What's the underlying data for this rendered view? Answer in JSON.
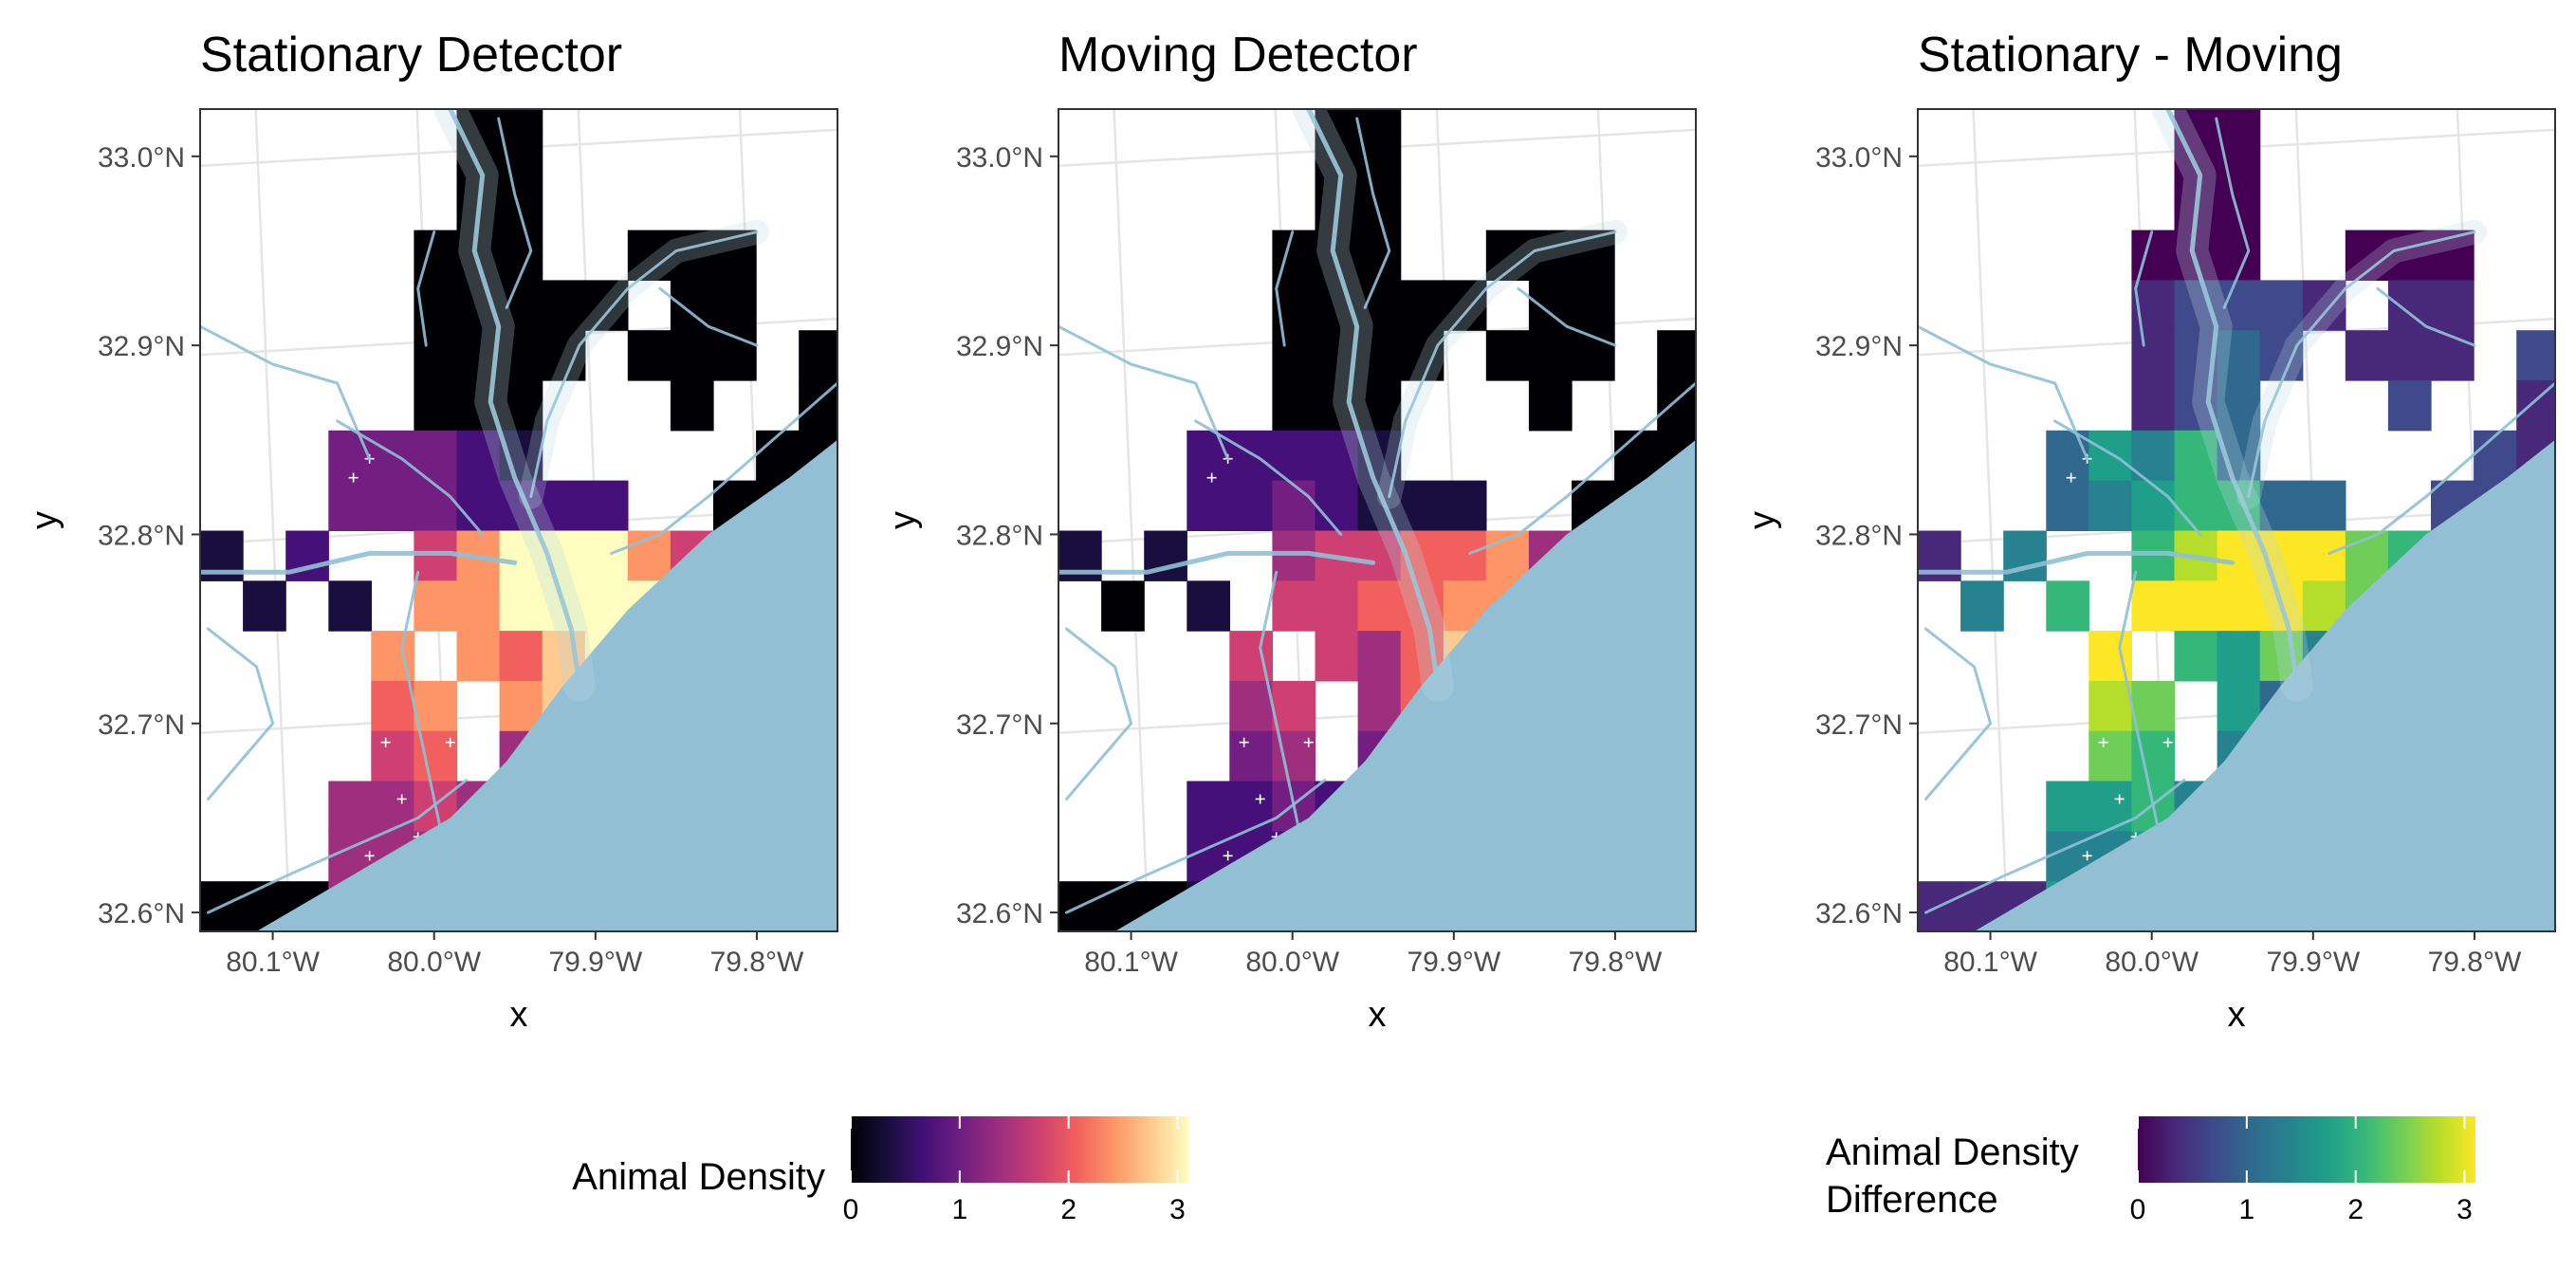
{
  "panels": [
    {
      "title": "Stationary Detector",
      "palette": "magma"
    },
    {
      "title": "Moving Detector",
      "palette": "magma"
    },
    {
      "title": "Stationary - Moving",
      "palette": "viridis"
    }
  ],
  "axes": {
    "xlabel": "x",
    "ylabel": "y",
    "lon_range": [
      -80.145,
      -79.75
    ],
    "lat_range": [
      32.59,
      33.025
    ],
    "xticks": [
      {
        "lon": -80.1,
        "label": "80.1°W"
      },
      {
        "lon": -80.0,
        "label": "80.0°W"
      },
      {
        "lon": -79.9,
        "label": "79.9°W"
      },
      {
        "lon": -79.8,
        "label": "79.8°W"
      }
    ],
    "yticks": [
      {
        "lat": 33.0,
        "label": "33.0°N"
      },
      {
        "lat": 32.9,
        "label": "32.9°N"
      },
      {
        "lat": 32.8,
        "label": "32.8°N"
      },
      {
        "lat": 32.7,
        "label": "32.7°N"
      },
      {
        "lat": 32.6,
        "label": "32.6°N"
      }
    ]
  },
  "legends": [
    {
      "title_lines": [
        "Animal Density"
      ],
      "palette": "magma",
      "range": [
        0,
        3.1
      ],
      "tick_labels": [
        "0",
        "1",
        "2",
        "3"
      ],
      "ticks": [
        0,
        1,
        2,
        3
      ]
    },
    {
      "title_lines": [
        "Animal Density",
        "Difference"
      ],
      "palette": "viridis",
      "range": [
        0,
        3.1
      ],
      "tick_labels": [
        "0",
        "1",
        "2",
        "3"
      ],
      "ticks": [
        0,
        1,
        2,
        3
      ]
    }
  ],
  "colors": {
    "water": "#93bfd4",
    "river": "#8ec0d6",
    "grid": "#e5e5e5",
    "frame": "#333333",
    "cross": "#ffffff"
  },
  "chart_data": {
    "type": "heatmap",
    "grid": {
      "lon0": -80.145,
      "lat0": 32.59,
      "cell_deg": 0.0265,
      "cols": 15,
      "rows": 17
    },
    "row_order": "top (north) to bottom (south)",
    "cell_code": "0-9 = density step of ~0.33 (value = code × 0.33), '.' = no cell",
    "stationary": [
      "......00.......",
      "......00.......",
      "......00.......",
      ".....000..000..",
      ".....00000.00..",
      ".....0000.000.0",
      ".....000...0..0",
      "...33321.....00",
      "...3332222..000",
      "1.2..57999755..",
      ".1.1.7799999...",
      "....7.7689.....",
      "....67.789.....",
      "....56.4.......",
      "...445455......",
      "...44444.......",
      "0004445........"
    ],
    "moving": [
      "......00.......",
      "......00.......",
      "......00.......",
      ".....000..000..",
      ".....00000.00..",
      ".....0000.000.0",
      ".....000...0..0",
      "...22221.....00",
      "...2232111..000",
      "1.1..45566744..",
      ".0.1.5566777...",
      "....5.5468.....",
      "....45.469.....",
      "....34.3.......",
      "...223233......",
      "...22222.......",
      "0001223........"
    ],
    "difference": [
      "......00.......",
      "......00.......",
      "......00.......",
      ".....000..000..",
      ".....12221.11..",
      ".....1232.111.2",
      ".....123...2..1",
      "...35463.....21",
      "...3456633..222",
      "1.4..68999766..",
      ".4.6.9999877...",
      "....9.6574.....",
      "....87.532.....",
      "....76.4.......",
      "...556443......",
      "...44543.......",
      "1115554........"
    ]
  }
}
